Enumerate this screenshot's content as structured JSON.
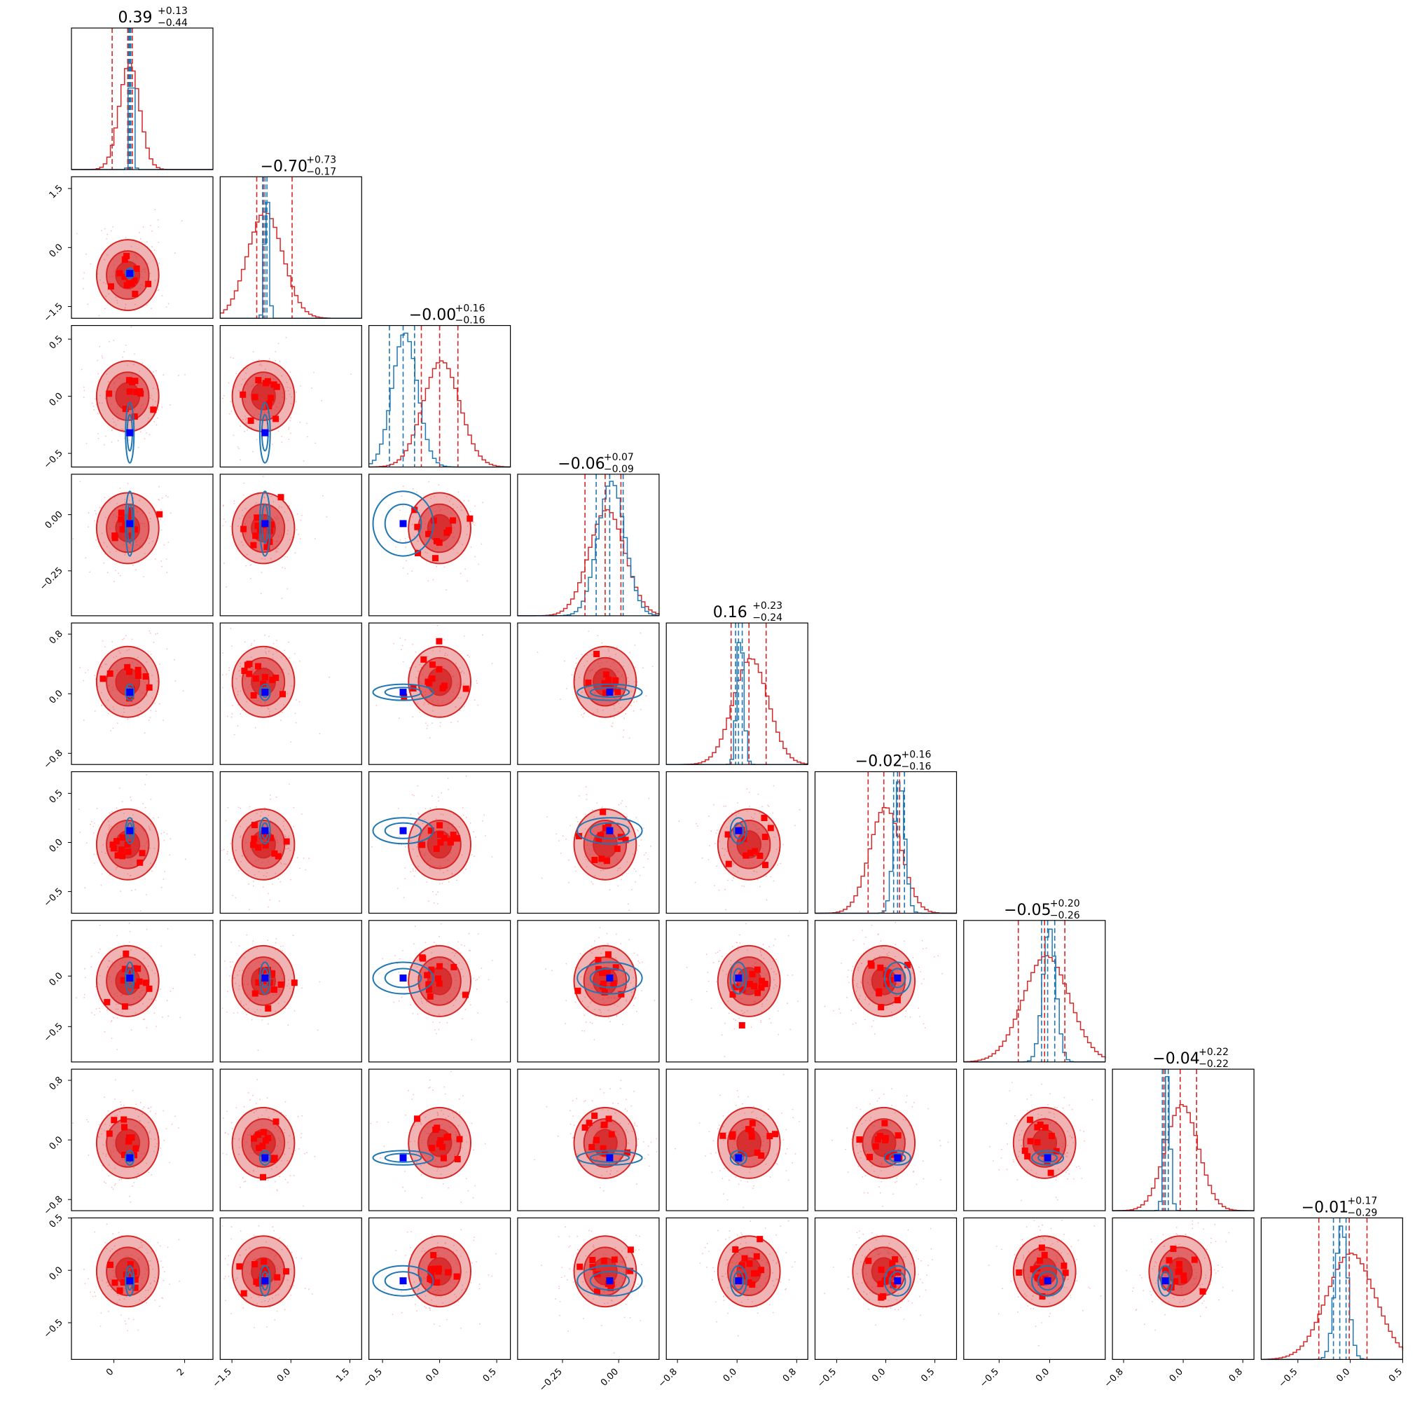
{
  "chart_data": {
    "type": "corner",
    "n_params": 9,
    "colors": {
      "primary": "#d62728",
      "secondary": "#1f77b4",
      "marker_primary": "#ff0000",
      "marker_secondary": "#0000ff"
    },
    "diagonal": [
      {
        "value": "0.39",
        "plus": "+0.13",
        "minus": "−0.44",
        "center": 0.39,
        "q_lo": -0.05,
        "q_hi": 0.52,
        "blue_center": 0.45,
        "blue_q": [
          0.42,
          0.48
        ],
        "range": [
          -1.2,
          2.8
        ]
      },
      {
        "value": "−0.70",
        "plus": "+0.73",
        "minus": "−0.17",
        "center": -0.7,
        "q_lo": -0.87,
        "q_hi": 0.03,
        "blue_center": -0.66,
        "blue_q": [
          -0.72,
          -0.61
        ],
        "range": [
          -1.8,
          1.8
        ]
      },
      {
        "value": "−0.00",
        "plus": "+0.16",
        "minus": "−0.16",
        "center": 0.0,
        "q_lo": -0.16,
        "q_hi": 0.16,
        "blue_center": -0.32,
        "blue_q": [
          -0.44,
          -0.22
        ],
        "range": [
          -0.62,
          0.62
        ]
      },
      {
        "value": "−0.06",
        "plus": "+0.07",
        "minus": "−0.09",
        "center": -0.06,
        "q_lo": -0.15,
        "q_hi": 0.01,
        "blue_center": -0.04,
        "blue_q": [
          -0.1,
          0.02
        ],
        "range": [
          -0.45,
          0.18
        ]
      },
      {
        "value": "0.16",
        "plus": "+0.23",
        "minus": "−0.24",
        "center": 0.16,
        "q_lo": -0.08,
        "q_hi": 0.39,
        "blue_center": 0.02,
        "blue_q": [
          -0.02,
          0.07
        ],
        "range": [
          -0.95,
          0.95
        ]
      },
      {
        "value": "−0.02",
        "plus": "+0.16",
        "minus": "−0.16",
        "center": -0.02,
        "q_lo": -0.18,
        "q_hi": 0.14,
        "blue_center": 0.12,
        "blue_q": [
          0.08,
          0.19
        ],
        "range": [
          -0.72,
          0.72
        ]
      },
      {
        "value": "−0.05",
        "plus": "+0.20",
        "minus": "−0.26",
        "center": -0.05,
        "q_lo": -0.31,
        "q_hi": 0.15,
        "blue_center": -0.02,
        "blue_q": [
          -0.08,
          0.05
        ],
        "range": [
          -0.85,
          0.55
        ]
      },
      {
        "value": "−0.04",
        "plus": "+0.22",
        "minus": "−0.22",
        "center": -0.04,
        "q_lo": -0.26,
        "q_hi": 0.18,
        "blue_center": -0.24,
        "blue_q": [
          -0.28,
          -0.2
        ],
        "range": [
          -0.95,
          0.95
        ]
      },
      {
        "value": "−0.01",
        "plus": "+0.17",
        "minus": "−0.29",
        "center": -0.01,
        "q_lo": -0.3,
        "q_hi": 0.16,
        "blue_center": -0.1,
        "blue_q": [
          -0.16,
          -0.04
        ],
        "range": [
          -0.85,
          0.5
        ]
      }
    ],
    "y_ticks": [
      null,
      {
        "labels": [
          "1.5",
          "0.0",
          "−1.5"
        ],
        "values": [
          1.5,
          0.0,
          -1.5
        ]
      },
      {
        "labels": [
          "0.5",
          "0.0",
          "−0.5"
        ],
        "values": [
          0.5,
          0.0,
          -0.5
        ]
      },
      {
        "labels": [
          "0.00",
          "−0.25"
        ],
        "values": [
          0.0,
          -0.25
        ]
      },
      {
        "labels": [
          "0.8",
          "0.0",
          "−0.8"
        ],
        "values": [
          0.8,
          0.0,
          -0.8
        ]
      },
      {
        "labels": [
          "0.5",
          "0.0",
          "−0.5"
        ],
        "values": [
          0.5,
          0.0,
          -0.5
        ]
      },
      {
        "labels": [
          "0.0",
          "−0.5"
        ],
        "values": [
          0.0,
          -0.5
        ]
      },
      {
        "labels": [
          "0.8",
          "0.0",
          "−0.8"
        ],
        "values": [
          0.8,
          0.0,
          -0.8
        ]
      },
      {
        "labels": [
          "0.5",
          "0.0",
          "−0.5"
        ],
        "values": [
          0.5,
          0.0,
          -0.5
        ]
      }
    ],
    "x_ticks": [
      {
        "labels": [
          "0",
          "2"
        ],
        "values": [
          0,
          2
        ]
      },
      {
        "labels": [
          "−1.5",
          "0.0",
          "1.5"
        ],
        "values": [
          -1.5,
          0.0,
          1.5
        ]
      },
      {
        "labels": [
          "−0.5",
          "0.0",
          "0.5"
        ],
        "values": [
          -0.5,
          0.0,
          0.5
        ]
      },
      {
        "labels": [
          "−0.25",
          "0.00"
        ],
        "values": [
          -0.25,
          0.0
        ]
      },
      {
        "labels": [
          "−0.8",
          "0.0",
          "0.8"
        ],
        "values": [
          -0.8,
          0.0,
          0.8
        ]
      },
      {
        "labels": [
          "−0.5",
          "0.0",
          "0.5"
        ],
        "values": [
          -0.5,
          0.0,
          0.5
        ]
      },
      {
        "labels": [
          "−0.5",
          "0.0"
        ],
        "values": [
          -0.5,
          0.0
        ]
      },
      {
        "labels": [
          "−0.8",
          "0.0",
          "0.8"
        ],
        "values": [
          -0.8,
          0.0,
          0.8
        ]
      },
      {
        "labels": [
          "−0.5",
          "0.0",
          "0.5"
        ],
        "values": [
          -0.5,
          0.0,
          0.5
        ]
      }
    ]
  }
}
